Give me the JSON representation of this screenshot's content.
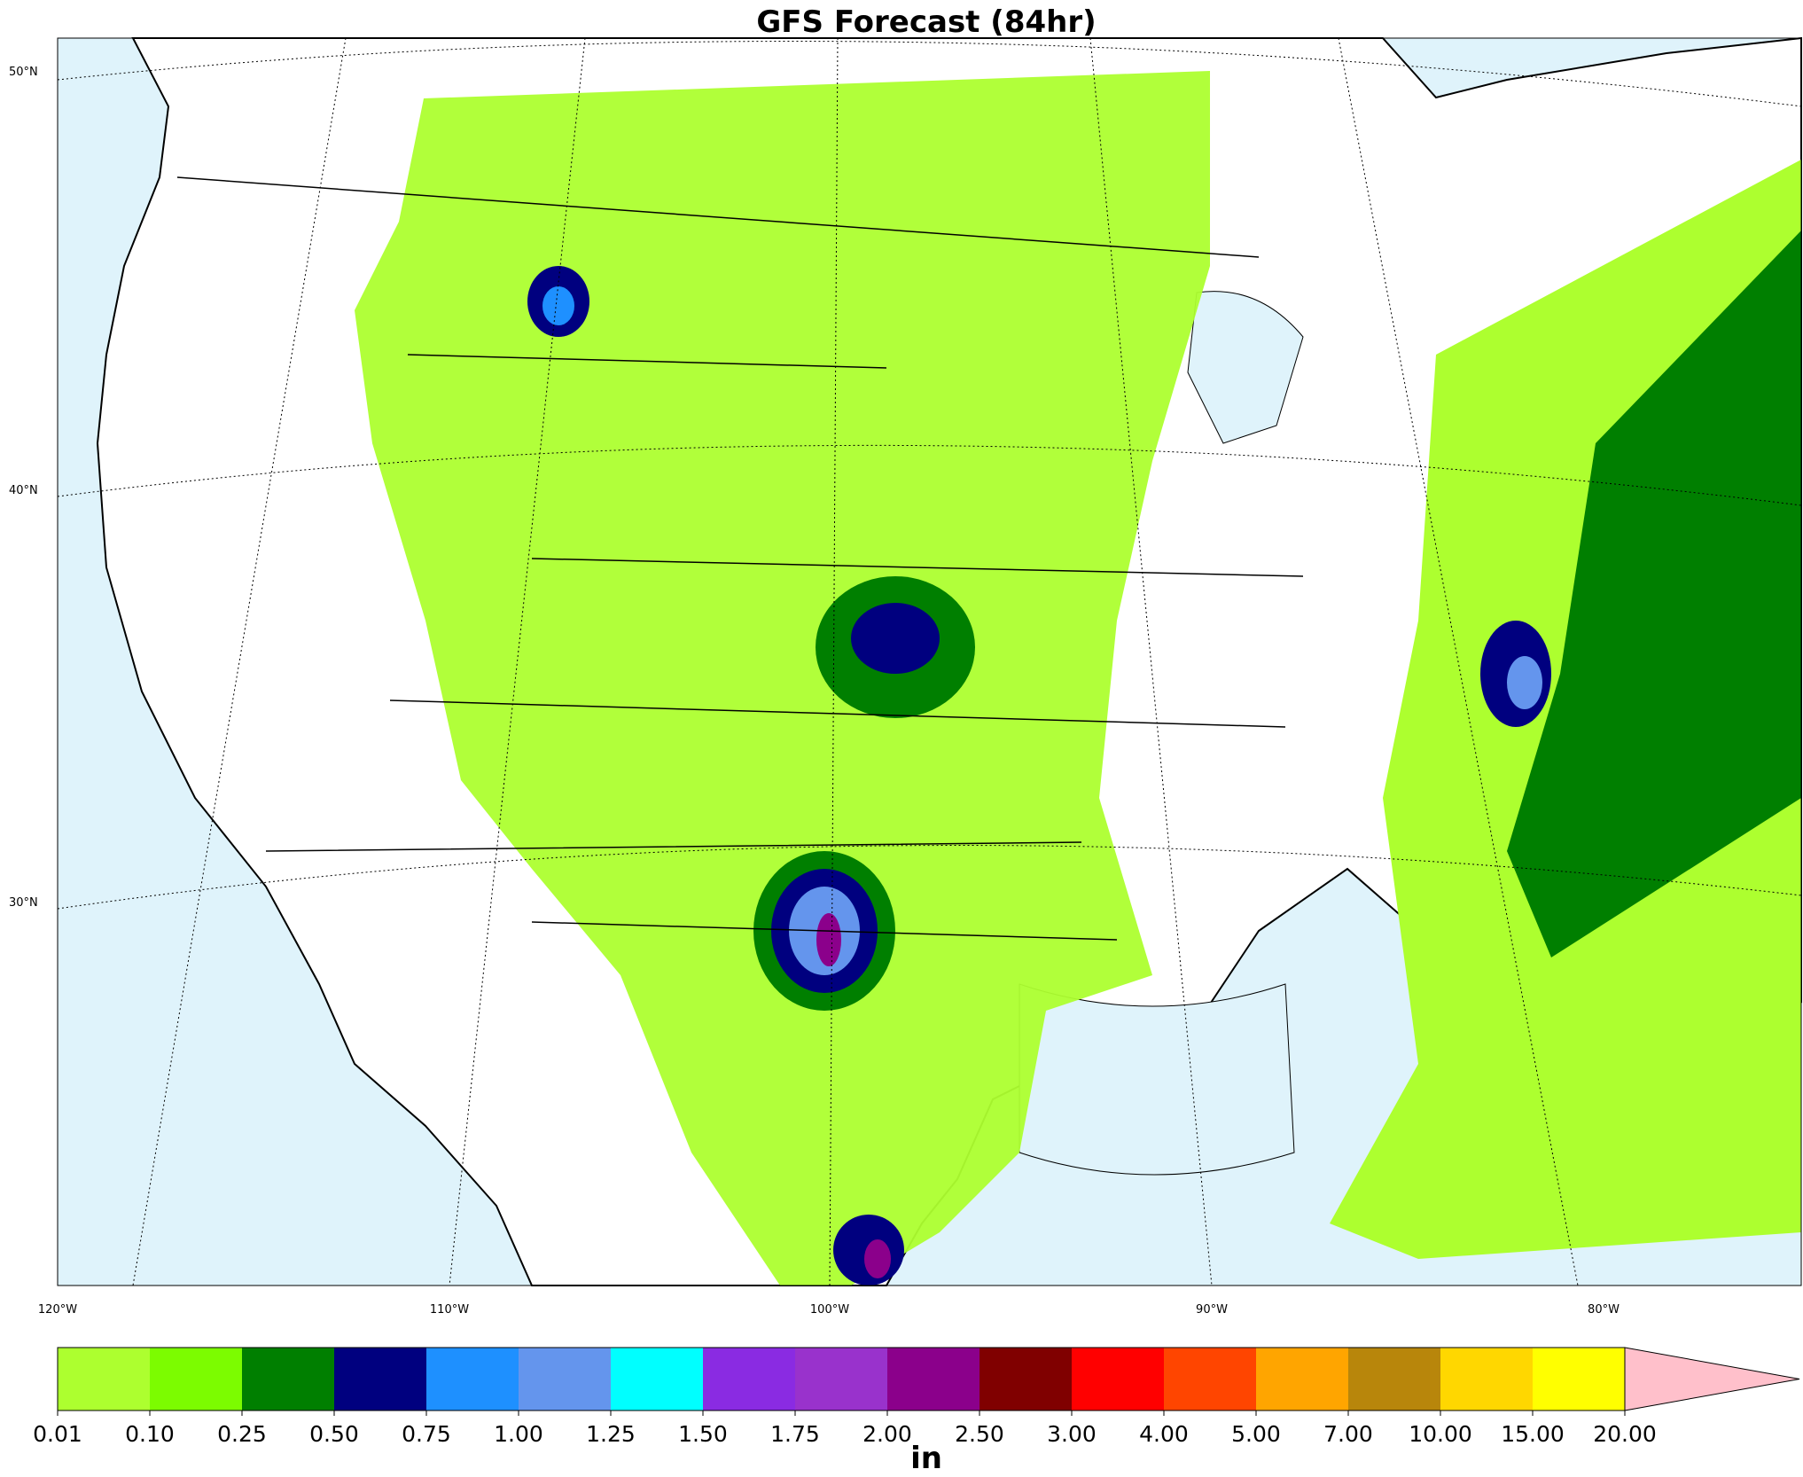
{
  "title": "GFS Forecast (84hr)",
  "latitude_labels": [
    "50°N",
    "40°N",
    "30°N"
  ],
  "longitude_labels": [
    "120°W",
    "110°W",
    "100°W",
    "90°W",
    "80°W"
  ],
  "colorbar": {
    "levels": [
      {
        "value": 0.01,
        "label": "0.01"
      },
      {
        "value": 0.1,
        "label": "0.10"
      },
      {
        "value": 0.25,
        "label": "0.25"
      },
      {
        "value": 0.5,
        "label": "0.50"
      },
      {
        "value": 0.75,
        "label": "0.75"
      },
      {
        "value": 1,
        "label": "1.00"
      },
      {
        "value": 1.25,
        "label": "1.25"
      },
      {
        "value": 1.5,
        "label": "1.50"
      },
      {
        "value": 1.75,
        "label": "1.75"
      },
      {
        "value": 2,
        "label": "2.00"
      },
      {
        "value": 2.5,
        "label": "2.50"
      },
      {
        "value": 3,
        "label": "3.00"
      },
      {
        "value": 4,
        "label": "4.00"
      },
      {
        "value": 5,
        "label": "5.00"
      },
      {
        "value": 7,
        "label": "7.00"
      },
      {
        "value": 10,
        "label": "10.00"
      },
      {
        "value": 15,
        "label": "15.00"
      },
      {
        "value": 20,
        "label": "20.00"
      }
    ],
    "colors": [
      "#adff2f",
      "#7cfc00",
      "#007f00",
      "#00007f",
      "#1e90ff",
      "#6495ed",
      "#00ffff",
      "#8a2be2",
      "#9932cc",
      "#8b008b",
      "#800000",
      "#ff0000",
      "#ff4500",
      "#ffa500",
      "#b8860b",
      "#ffd700",
      "#ffff00"
    ],
    "extend_color": "#ffc0cb",
    "unit": "in"
  }
}
